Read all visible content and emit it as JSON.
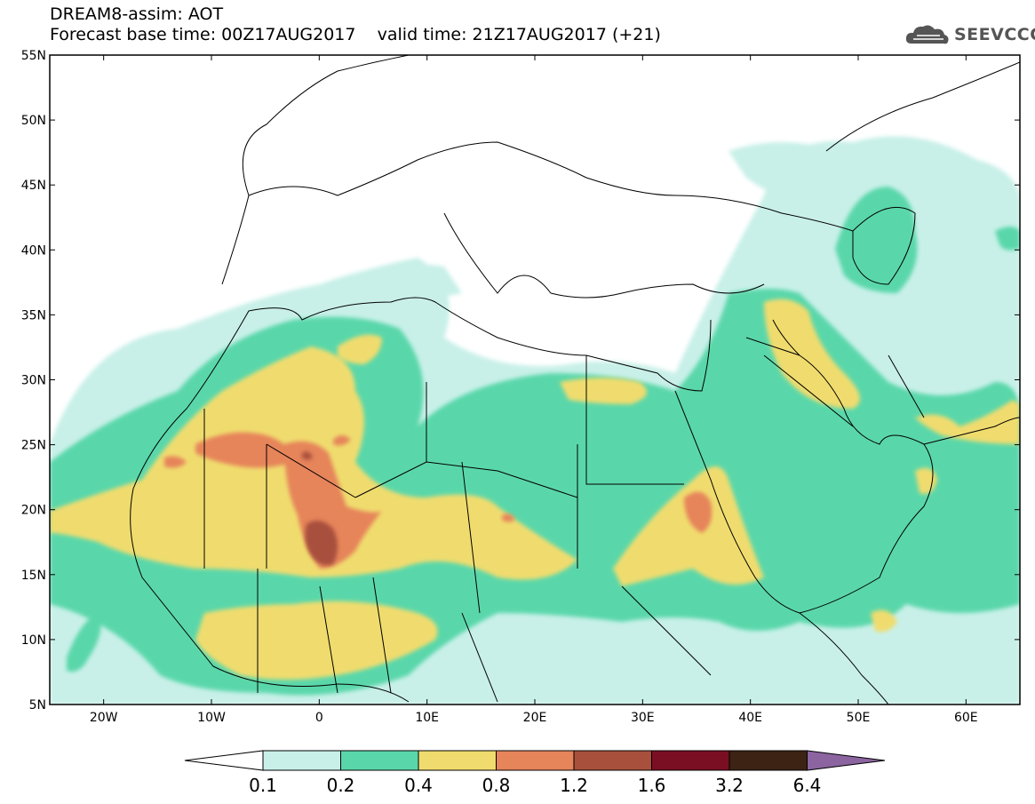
{
  "header": {
    "title_line1": "DREAM8-assim: AOT",
    "title_line2": "Forecast base time: 00Z17AUG2017    valid time: 21Z17AUG2017 (+21)"
  },
  "logo": {
    "text": "SEEVCCC",
    "icon": "cloud-icon",
    "color": "#555555"
  },
  "map": {
    "lat_labels": [
      "55N",
      "50N",
      "45N",
      "40N",
      "35N",
      "30N",
      "25N",
      "20N",
      "15N",
      "10N",
      "5N"
    ],
    "lon_labels": [
      "20W",
      "10W",
      "0",
      "10E",
      "20E",
      "30E",
      "40E",
      "50E",
      "60E"
    ],
    "lat_range": [
      5,
      55
    ],
    "lon_range": [
      -25,
      65
    ]
  },
  "colorbar": {
    "ticks": [
      "0.1",
      "0.2",
      "0.4",
      "0.8",
      "1.2",
      "1.6",
      "3.2",
      "6.4"
    ],
    "colors": [
      "#ffffff",
      "#c8f0e8",
      "#5ad7aa",
      "#f0dc6e",
      "#e6845a",
      "#a8503c",
      "#7a0f23",
      "#3c2314",
      "#8c64a0"
    ]
  }
}
